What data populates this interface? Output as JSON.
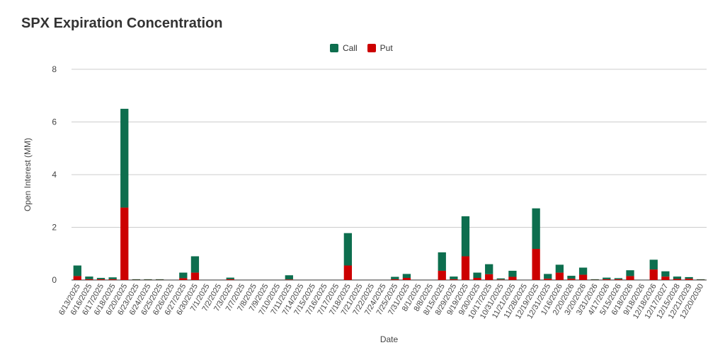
{
  "chart_data": {
    "type": "bar",
    "stacked": true,
    "title": "SPX Expiration Concentration",
    "xlabel": "Date",
    "ylabel": "Open Interest (MM)",
    "ylim": [
      0,
      8
    ],
    "yticks": [
      0,
      2,
      4,
      6,
      8
    ],
    "grid": true,
    "legend_position": "top",
    "categories": [
      "6/13/2025",
      "6/16/2025",
      "6/17/2025",
      "6/18/2025",
      "6/20/2025",
      "6/23/2025",
      "6/24/2025",
      "6/25/2025",
      "6/26/2025",
      "6/27/2025",
      "6/30/2025",
      "7/1/2025",
      "7/2/2025",
      "7/3/2025",
      "7/7/2025",
      "7/8/2025",
      "7/9/2025",
      "7/10/2025",
      "7/11/2025",
      "7/14/2025",
      "7/15/2025",
      "7/16/2025",
      "7/17/2025",
      "7/18/2025",
      "7/21/2025",
      "7/22/2025",
      "7/24/2025",
      "7/25/2025",
      "7/31/2025",
      "8/1/2025",
      "8/8/2025",
      "8/15/2025",
      "8/29/2025",
      "9/19/2025",
      "9/30/2025",
      "10/17/2025",
      "10/31/2025",
      "11/21/2025",
      "11/28/2025",
      "12/19/2025",
      "12/31/2025",
      "1/16/2026",
      "2/20/2026",
      "3/20/2026",
      "3/31/2026",
      "4/17/2026",
      "5/15/2026",
      "6/18/2026",
      "9/18/2026",
      "12/18/2026",
      "12/17/2027",
      "12/15/2028",
      "12/21/2029",
      "12/20/2030"
    ],
    "series": [
      {
        "name": "Put",
        "color": "#cc0000",
        "values": [
          0.15,
          0.03,
          0.03,
          0.03,
          2.75,
          0.01,
          0.01,
          0.01,
          0,
          0.07,
          0.28,
          0,
          0,
          0.03,
          0,
          0,
          0,
          0,
          0.02,
          0,
          0,
          0,
          0,
          0.55,
          0,
          0,
          0,
          0.03,
          0.08,
          0,
          0,
          0.35,
          0.03,
          0.9,
          0.08,
          0.22,
          0.02,
          0.12,
          0,
          1.18,
          0.05,
          0.28,
          0.05,
          0.2,
          0.01,
          0.03,
          0.03,
          0.15,
          0,
          0.4,
          0.13,
          0.04,
          0.05,
          0.01
        ]
      },
      {
        "name": "Call",
        "color": "#0d6e4e",
        "values": [
          0.4,
          0.1,
          0.05,
          0.07,
          3.75,
          0.02,
          0.02,
          0.02,
          0,
          0.21,
          0.62,
          0,
          0,
          0.06,
          0,
          0,
          0,
          0,
          0.16,
          0,
          0,
          0,
          0,
          1.23,
          0,
          0,
          0,
          0.09,
          0.15,
          0,
          0,
          0.7,
          0.1,
          1.52,
          0.2,
          0.38,
          0.04,
          0.23,
          0,
          1.54,
          0.18,
          0.3,
          0.11,
          0.27,
          0.02,
          0.06,
          0.04,
          0.22,
          0,
          0.37,
          0.2,
          0.09,
          0.06,
          0.02
        ]
      }
    ]
  }
}
